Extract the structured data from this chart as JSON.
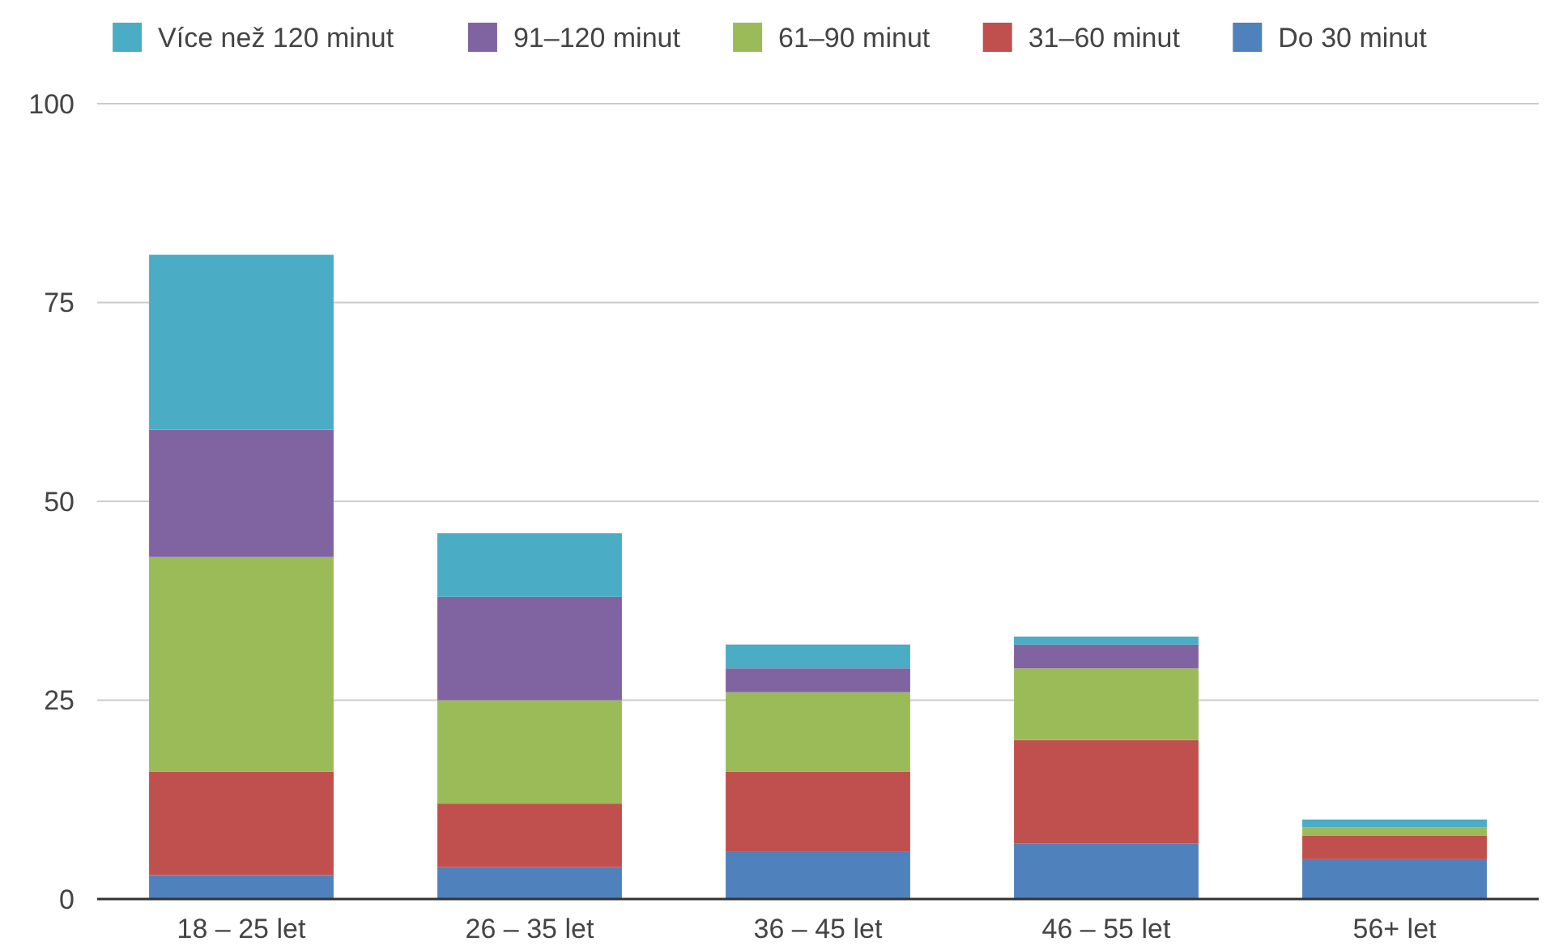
{
  "chart_data": {
    "type": "bar",
    "stacked": true,
    "categories": [
      "18 – 25 let",
      "26 – 35 let",
      "36 – 45 let",
      "46 – 55 let",
      "56+ let"
    ],
    "series": [
      {
        "name": "Do 30 minut",
        "color": "#4f81bd",
        "values": [
          3,
          4,
          6,
          7,
          5
        ]
      },
      {
        "name": "31–60 minut",
        "color": "#c0504d",
        "values": [
          13,
          8,
          10,
          13,
          3
        ]
      },
      {
        "name": "61–90 minut",
        "color": "#9bbb59",
        "values": [
          27,
          13,
          10,
          9,
          1
        ]
      },
      {
        "name": "91–120 minut",
        "color": "#8064a2",
        "values": [
          16,
          13,
          3,
          3,
          0
        ]
      },
      {
        "name": "Více než 120 minut",
        "color": "#4bacc6",
        "values": [
          22,
          8,
          3,
          1,
          1
        ]
      }
    ],
    "ylim": [
      0,
      100
    ],
    "yticks": [
      0,
      25,
      50,
      75,
      100
    ],
    "grid": "y",
    "legend": "top"
  }
}
